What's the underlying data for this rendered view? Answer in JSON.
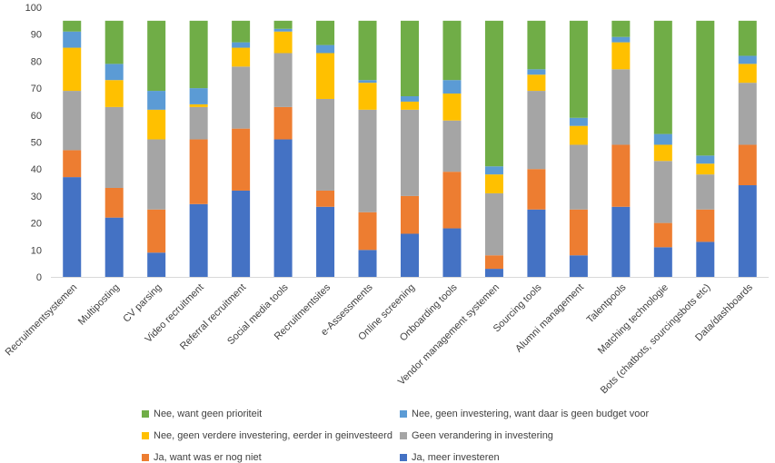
{
  "chart_data": {
    "type": "bar",
    "stacked": true,
    "ylim": [
      0,
      100
    ],
    "yticks": [
      0,
      10,
      20,
      30,
      40,
      50,
      60,
      70,
      80,
      90,
      100
    ],
    "grid": false,
    "legend_position": "bottom",
    "categories": [
      "Recruitmentsystemen",
      "Multiposting",
      "CV parsing",
      "Video recruitment",
      "Referral recruitment",
      "Social media tools",
      "Recruitmentsites",
      "e-Assessments",
      "Online screening",
      "Onboarding tools",
      "Vendor management systemen",
      "Sourcing tools",
      "Alumni management",
      "Talentpools",
      "Matching technologie",
      "Bots (chatbots, sourcingsbots etc)",
      "Data/dashboards"
    ],
    "series": [
      {
        "name": "Ja, meer investeren",
        "color": "#4472C4",
        "values": [
          37,
          22,
          9,
          27,
          32,
          51,
          26,
          10,
          16,
          18,
          3,
          25,
          8,
          26,
          11,
          13,
          34
        ]
      },
      {
        "name": "Ja, want was er nog niet",
        "color": "#ED7D31",
        "values": [
          10,
          11,
          16,
          24,
          23,
          12,
          6,
          14,
          14,
          21,
          5,
          15,
          17,
          23,
          9,
          12,
          15
        ]
      },
      {
        "name": "Geen verandering in investering",
        "color": "#A5A5A5",
        "values": [
          22,
          30,
          26,
          12,
          23,
          20,
          34,
          38,
          32,
          19,
          23,
          29,
          24,
          28,
          23,
          13,
          23
        ]
      },
      {
        "name": "Nee, geen verdere investering, eerder in geinvesteerd",
        "color": "#FFC000",
        "values": [
          16,
          10,
          11,
          1,
          7,
          8,
          17,
          10,
          3,
          10,
          7,
          6,
          7,
          10,
          6,
          4,
          7
        ]
      },
      {
        "name": "Nee, geen investering, want daar is geen budget voor",
        "color": "#5B9BD5",
        "values": [
          6,
          6,
          7,
          6,
          2,
          1,
          3,
          1,
          2,
          5,
          3,
          2,
          3,
          2,
          4,
          3,
          3
        ]
      },
      {
        "name": "Nee, want geen prioriteit",
        "color": "#70AD47",
        "values": [
          4,
          16,
          26,
          25,
          8,
          3,
          9,
          22,
          28,
          22,
          54,
          18,
          36,
          6,
          42,
          50,
          13
        ]
      }
    ],
    "legend_layout": [
      {
        "series": 5,
        "row": 0,
        "col": 0
      },
      {
        "series": 4,
        "row": 0,
        "col": 1
      },
      {
        "series": 3,
        "row": 1,
        "col": 0
      },
      {
        "series": 2,
        "row": 1,
        "col": 1
      },
      {
        "series": 1,
        "row": 2,
        "col": 0
      },
      {
        "series": 0,
        "row": 2,
        "col": 1
      }
    ]
  }
}
